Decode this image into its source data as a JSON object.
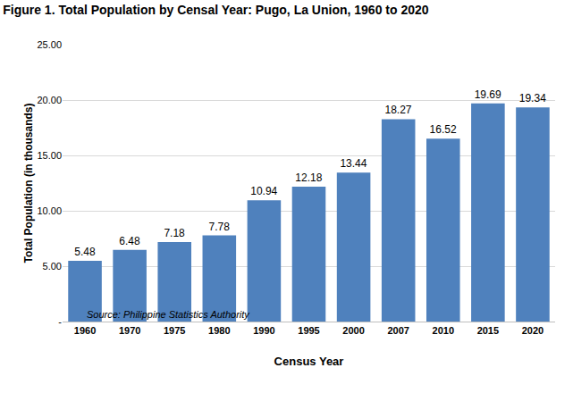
{
  "chart_data": {
    "type": "bar",
    "title": "Figure 1. Total Population by Censal Year: Pugo, La Union, 1960 to 2020",
    "x_label": "Census Year",
    "y_label": "Total Population (in thousands)",
    "source": "Source: Philippine Statistics Authority",
    "categories": [
      "1960",
      "1970",
      "1975",
      "1980",
      "1990",
      "1995",
      "2000",
      "2007",
      "2010",
      "2015",
      "2020"
    ],
    "values": [
      5.48,
      6.48,
      7.18,
      7.78,
      10.94,
      12.18,
      13.44,
      18.27,
      16.52,
      19.69,
      19.34
    ],
    "color": "#4f81bd",
    "ylim": [
      0,
      25
    ],
    "yticks": [
      {
        "value": 0,
        "label": "-"
      },
      {
        "value": 5,
        "label": "5.00"
      },
      {
        "value": 10,
        "label": "10.00"
      },
      {
        "value": 15,
        "label": "15.00"
      },
      {
        "value": 20,
        "label": "20.00"
      },
      {
        "value": 25,
        "label": "25.00"
      }
    ],
    "grid": true,
    "data_labels": true
  }
}
